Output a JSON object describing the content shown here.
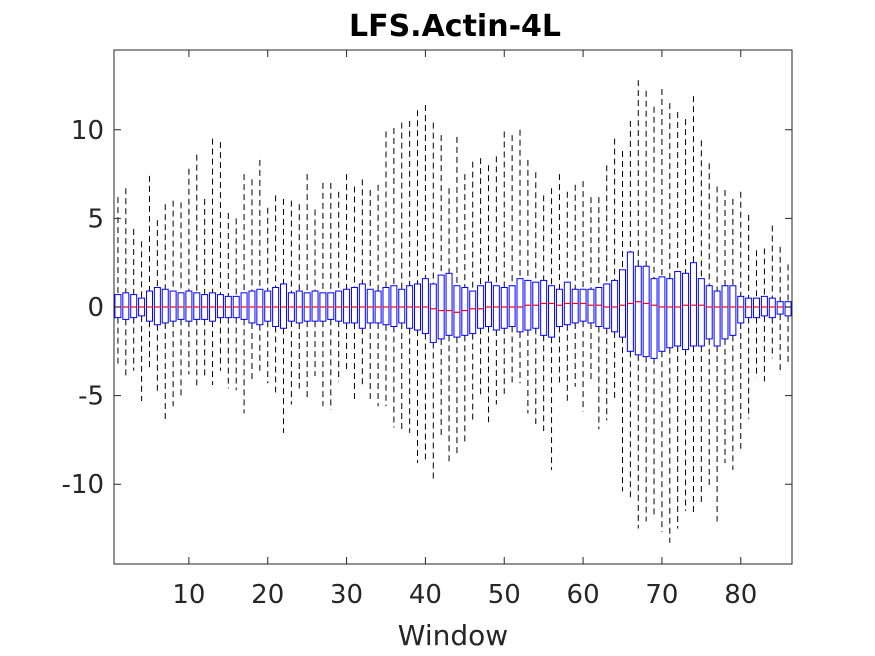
{
  "chart_data": {
    "type": "boxplot",
    "title": "LFS.Actin-4L",
    "xlabel": "Window",
    "ylabel": "",
    "xlim": [
      0.5,
      86.5
    ],
    "ylim": [
      -14.5,
      14.5
    ],
    "xticks": [
      10,
      20,
      30,
      40,
      50,
      60,
      70,
      80
    ],
    "yticks": [
      -10,
      -5,
      0,
      5,
      10
    ],
    "grid": false,
    "legend": "none",
    "colors": {
      "box": "#0000ff",
      "whisker": "#000000",
      "median": "#ff0000",
      "axis": "#262626",
      "frame": "#262626"
    },
    "windows": [
      1,
      2,
      3,
      4,
      5,
      6,
      7,
      8,
      9,
      10,
      11,
      12,
      13,
      14,
      15,
      16,
      17,
      18,
      19,
      20,
      21,
      22,
      23,
      24,
      25,
      26,
      27,
      28,
      29,
      30,
      31,
      32,
      33,
      34,
      35,
      36,
      37,
      38,
      39,
      40,
      41,
      42,
      43,
      44,
      45,
      46,
      47,
      48,
      49,
      50,
      51,
      52,
      53,
      54,
      55,
      56,
      57,
      58,
      59,
      60,
      61,
      62,
      63,
      64,
      65,
      66,
      67,
      68,
      69,
      70,
      71,
      72,
      73,
      74,
      75,
      76,
      77,
      78,
      79,
      80,
      81,
      82,
      83,
      84,
      85,
      86
    ],
    "whisker_high": [
      6.2,
      6.7,
      4.4,
      3.7,
      7.4,
      4.9,
      5.8,
      6.0,
      5.9,
      7.8,
      8.6,
      6.1,
      9.5,
      9.3,
      5.3,
      5.0,
      7.5,
      7.2,
      8.3,
      5.6,
      6.3,
      6.1,
      6.0,
      5.8,
      7.5,
      5.5,
      7.0,
      7.0,
      6.5,
      7.5,
      6.8,
      7.2,
      6.6,
      6.9,
      9.9,
      10.1,
      10.4,
      10.5,
      11.1,
      11.4,
      10.4,
      9.7,
      6.7,
      9.6,
      7.5,
      8.2,
      8.4,
      8.0,
      8.5,
      9.9,
      9.7,
      10.0,
      8.3,
      7.6,
      6.3,
      6.7,
      7.5,
      6.5,
      6.9,
      7.1,
      6.2,
      6.2,
      8.0,
      9.5,
      8.8,
      10.5,
      12.8,
      12.2,
      11.3,
      12.3,
      11.5,
      11.0,
      10.6,
      11.9,
      9.4,
      8.1,
      6.8,
      6.6,
      6.1,
      6.5,
      5.2,
      3.2,
      3.3,
      4.6,
      3.4,
      2.4
    ],
    "q3": [
      0.7,
      0.8,
      0.7,
      0.5,
      0.9,
      1.1,
      1.0,
      0.9,
      0.8,
      0.9,
      0.8,
      0.7,
      0.8,
      0.7,
      0.6,
      0.6,
      0.8,
      0.9,
      1.0,
      0.9,
      1.1,
      1.3,
      0.8,
      0.9,
      0.8,
      0.9,
      0.8,
      0.8,
      0.9,
      1.0,
      1.1,
      1.3,
      1.0,
      0.9,
      1.1,
      1.2,
      1.0,
      1.2,
      1.3,
      1.6,
      1.3,
      1.8,
      1.9,
      1.2,
      1.1,
      0.9,
      1.2,
      1.4,
      1.2,
      1.1,
      1.2,
      1.6,
      1.5,
      1.4,
      1.5,
      1.2,
      1.0,
      1.4,
      1.0,
      1.0,
      1.0,
      1.1,
      1.3,
      1.5,
      2.1,
      3.1,
      2.3,
      2.3,
      1.6,
      1.7,
      1.6,
      2.0,
      1.9,
      2.5,
      1.6,
      1.2,
      0.9,
      1.2,
      1.2,
      0.6,
      0.5,
      0.5,
      0.6,
      0.5,
      0.3,
      0.3
    ],
    "median": [
      0.0,
      0.0,
      0.0,
      0.0,
      0.0,
      0.0,
      0.0,
      0.0,
      0.0,
      0.0,
      0.0,
      0.0,
      0.0,
      0.0,
      0.0,
      0.0,
      0.0,
      0.0,
      0.0,
      0.0,
      0.0,
      0.0,
      0.0,
      0.0,
      0.0,
      0.0,
      0.0,
      0.0,
      0.0,
      0.0,
      0.0,
      0.0,
      0.0,
      0.0,
      0.0,
      0.0,
      0.0,
      0.0,
      0.0,
      0.0,
      -0.1,
      -0.2,
      -0.2,
      -0.3,
      -0.2,
      -0.1,
      -0.1,
      0.0,
      0.0,
      0.0,
      0.0,
      0.0,
      0.1,
      0.1,
      0.2,
      0.2,
      0.1,
      0.2,
      0.2,
      0.2,
      0.1,
      0.1,
      0.0,
      0.0,
      0.1,
      0.2,
      0.3,
      0.2,
      0.1,
      0.0,
      0.0,
      0.0,
      0.1,
      0.1,
      0.1,
      0.0,
      0.0,
      0.0,
      0.0,
      0.0,
      0.0,
      0.0,
      0.0,
      0.0,
      0.0,
      0.0
    ],
    "q1": [
      -0.6,
      -0.7,
      -0.6,
      -0.5,
      -0.8,
      -1.0,
      -0.9,
      -0.8,
      -0.7,
      -0.8,
      -0.7,
      -0.7,
      -0.8,
      -0.6,
      -0.6,
      -0.6,
      -0.7,
      -0.9,
      -1.0,
      -0.8,
      -1.1,
      -1.2,
      -0.8,
      -0.9,
      -0.8,
      -0.8,
      -0.8,
      -0.7,
      -0.8,
      -0.9,
      -0.9,
      -1.2,
      -0.9,
      -0.9,
      -1.0,
      -1.1,
      -0.9,
      -1.2,
      -1.3,
      -1.5,
      -2.0,
      -1.8,
      -1.6,
      -1.7,
      -1.6,
      -1.5,
      -1.2,
      -1.1,
      -1.3,
      -1.2,
      -1.1,
      -1.4,
      -1.3,
      -1.2,
      -1.6,
      -1.7,
      -1.1,
      -1.0,
      -0.9,
      -0.8,
      -0.9,
      -1.1,
      -1.2,
      -1.4,
      -1.7,
      -2.5,
      -2.7,
      -2.8,
      -2.9,
      -2.5,
      -2.3,
      -2.2,
      -2.4,
      -2.2,
      -2.2,
      -1.8,
      -2.2,
      -1.8,
      -1.6,
      -0.9,
      -0.6,
      -0.6,
      -0.5,
      -0.6,
      -0.4,
      -0.5
    ],
    "whisker_low": [
      -3.3,
      -4.0,
      -3.6,
      -5.3,
      -3.5,
      -4.9,
      -6.4,
      -5.6,
      -5.0,
      -3.8,
      -4.6,
      -4.0,
      -4.4,
      -3.6,
      -4.6,
      -4.7,
      -6.0,
      -4.1,
      -3.8,
      -4.3,
      -5.0,
      -7.1,
      -5.5,
      -4.6,
      -5.3,
      -3.9,
      -5.6,
      -5.8,
      -4.2,
      -3.6,
      -5.3,
      -4.5,
      -5.3,
      -5.6,
      -5.6,
      -6.8,
      -7.0,
      -7.1,
      -8.8,
      -8.6,
      -9.7,
      -7.4,
      -8.7,
      -8.4,
      -7.7,
      -6.4,
      -5.0,
      -6.5,
      -5.5,
      -4.9,
      -4.3,
      -4.3,
      -6.0,
      -6.6,
      -7.0,
      -9.2,
      -4.4,
      -5.4,
      -4.5,
      -5.9,
      -4.2,
      -6.9,
      -6.4,
      -5.2,
      -10.4,
      -10.9,
      -12.5,
      -12.1,
      -11.7,
      -12.7,
      -13.3,
      -12.5,
      -11.5,
      -11.6,
      -11.0,
      -10.2,
      -12.1,
      -8.8,
      -9.2,
      -8.0,
      -6.3,
      -4.0,
      -4.2,
      -2.9,
      -3.8,
      -3.2
    ]
  }
}
